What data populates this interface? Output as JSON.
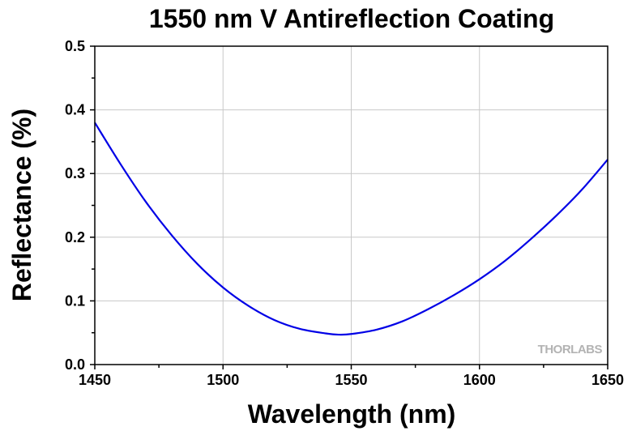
{
  "chart_data": {
    "type": "line",
    "title": "1550 nm V Antireflection Coating",
    "xlabel": "Wavelength (nm)",
    "ylabel": "Reflectance (%)",
    "xlim": [
      1450,
      1650
    ],
    "ylim": [
      0.0,
      0.5
    ],
    "x_ticks": [
      "1450",
      "1500",
      "1550",
      "1600",
      "1650"
    ],
    "y_ticks": [
      "0.0",
      "0.1",
      "0.2",
      "0.3",
      "0.4",
      "0.5"
    ],
    "grid": true,
    "watermark": "THORLABS",
    "series": [
      {
        "color": "#0000e6",
        "x": [
          1450,
          1460,
          1470,
          1480,
          1490,
          1500,
          1510,
          1520,
          1530,
          1540,
          1545,
          1550,
          1560,
          1570,
          1580,
          1590,
          1600,
          1610,
          1620,
          1630,
          1640,
          1650
        ],
        "y": [
          0.38,
          0.315,
          0.255,
          0.203,
          0.158,
          0.121,
          0.092,
          0.07,
          0.056,
          0.049,
          0.047,
          0.048,
          0.055,
          0.068,
          0.087,
          0.109,
          0.134,
          0.163,
          0.197,
          0.234,
          0.275,
          0.322
        ]
      }
    ]
  }
}
